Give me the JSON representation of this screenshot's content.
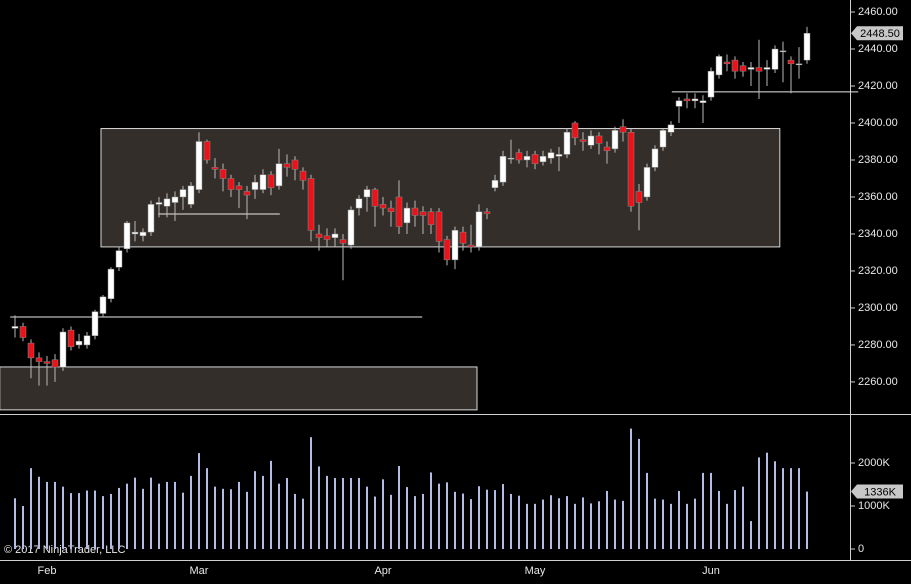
{
  "chart_data": [
    {
      "type": "candlestick",
      "categories": [
        null,
        null,
        null,
        null,
        "Feb",
        null,
        null,
        null,
        null,
        null,
        null,
        null,
        null,
        null,
        null,
        null,
        null,
        null,
        null,
        null,
        null,
        null,
        null,
        "Mar",
        null,
        null,
        null,
        null,
        null,
        null,
        null,
        null,
        null,
        null,
        null,
        null,
        null,
        null,
        null,
        null,
        null,
        null,
        null,
        null,
        null,
        null,
        "Apr",
        null,
        null,
        null,
        null,
        null,
        null,
        null,
        null,
        null,
        null,
        null,
        null,
        null,
        null,
        null,
        null,
        null,
        null,
        "May",
        null,
        null,
        null,
        null,
        null,
        null,
        null,
        null,
        null,
        null,
        null,
        null,
        null,
        null,
        null,
        null,
        null,
        null,
        null,
        null,
        null,
        "Jun",
        null,
        null,
        null,
        null,
        null,
        null,
        null,
        null,
        null,
        null,
        null,
        null
      ],
      "open": [
        2289,
        2290,
        2281,
        2273,
        2271,
        2272,
        2268,
        2288,
        2280,
        2280,
        2285,
        2297,
        2305,
        2322,
        2332,
        2340,
        2339,
        2341,
        2356,
        2355,
        2357,
        2360,
        2356,
        2364,
        2390,
        2376,
        2375,
        2370,
        2366,
        2363,
        2364,
        2364,
        2372,
        2366,
        2378,
        2380,
        2374,
        2370,
        2340,
        2339,
        2338,
        2337,
        2334,
        2354,
        2360,
        2364,
        2356,
        2354,
        2360,
        2346,
        2354,
        2352,
        2352,
        2352,
        2337,
        2326,
        2341,
        2334,
        2333,
        2352,
        2365,
        2368,
        2381,
        2384,
        2380,
        2383,
        2379,
        2381,
        2382,
        2383,
        2400,
        2391,
        2388,
        2393,
        2387,
        2386,
        2398,
        2395,
        2363,
        2360,
        2376,
        2387,
        2395,
        2409,
        2413,
        2412,
        2411,
        2414,
        2426,
        2433,
        2434,
        2431,
        2429,
        2430,
        2429,
        2429,
        2439,
        2434,
        2432,
        2434
      ],
      "high": [
        2296,
        2292,
        2283,
        2276,
        2274,
        2275,
        2289,
        2290,
        2286,
        2287,
        2299,
        2307,
        2322,
        2333,
        2347,
        2347,
        2343,
        2358,
        2360,
        2362,
        2363,
        2366,
        2368,
        2395,
        2391,
        2381,
        2378,
        2372,
        2368,
        2366,
        2372,
        2375,
        2374,
        2386,
        2383,
        2382,
        2376,
        2372,
        2345,
        2343,
        2343,
        2340,
        2355,
        2361,
        2366,
        2365,
        2360,
        2358,
        2369,
        2357,
        2358,
        2355,
        2354,
        2354,
        2339,
        2344,
        2344,
        2345,
        2356,
        2354,
        2372,
        2385,
        2391,
        2386,
        2385,
        2385,
        2385,
        2386,
        2387,
        2397,
        2401,
        2395,
        2396,
        2395,
        2390,
        2398,
        2402,
        2397,
        2367,
        2378,
        2388,
        2397,
        2401,
        2414,
        2416,
        2416,
        2415,
        2430,
        2437,
        2437,
        2436,
        2433,
        2433,
        2445,
        2434,
        2442,
        2444,
        2436,
        2441,
        2452
      ],
      "low": [
        2284,
        2282,
        2262,
        2258,
        2258,
        2260,
        2266,
        2277,
        2278,
        2278,
        2283,
        2295,
        2303,
        2320,
        2330,
        2336,
        2336,
        2339,
        2349,
        2349,
        2347,
        2353,
        2354,
        2362,
        2378,
        2370,
        2363,
        2360,
        2354,
        2348,
        2359,
        2362,
        2361,
        2364,
        2371,
        2369,
        2364,
        2336,
        2331,
        2333,
        2333,
        2315,
        2332,
        2350,
        2352,
        2344,
        2350,
        2344,
        2340,
        2340,
        2344,
        2340,
        2340,
        2330,
        2323,
        2321,
        2331,
        2330,
        2331,
        2348,
        2363,
        2366,
        2378,
        2378,
        2376,
        2375,
        2377,
        2378,
        2374,
        2381,
        2388,
        2385,
        2386,
        2383,
        2378,
        2384,
        2390,
        2352,
        2342,
        2358,
        2374,
        2385,
        2393,
        2400,
        2408,
        2408,
        2400,
        2412,
        2424,
        2428,
        2424,
        2425,
        2420,
        2413,
        2420,
        2427,
        2422,
        2416,
        2424,
        2432
      ],
      "close": [
        2290,
        2284,
        2273,
        2271,
        2270,
        2268,
        2287,
        2279,
        2282,
        2285,
        2298,
        2306,
        2321,
        2331,
        2346,
        2341,
        2341,
        2356,
        2357,
        2359,
        2360,
        2364,
        2366,
        2390,
        2380,
        2375,
        2370,
        2364,
        2364,
        2361,
        2368,
        2372,
        2365,
        2378,
        2376,
        2375,
        2369,
        2342,
        2338,
        2337,
        2340,
        2335,
        2353,
        2359,
        2364,
        2355,
        2354,
        2352,
        2344,
        2354,
        2350,
        2350,
        2345,
        2336,
        2326,
        2342,
        2335,
        2333,
        2352,
        2351,
        2369,
        2382,
        2381,
        2380,
        2382,
        2378,
        2382,
        2384,
        2383,
        2395,
        2392,
        2390,
        2393,
        2389,
        2385,
        2396,
        2395,
        2355,
        2357,
        2376,
        2386,
        2396,
        2399,
        2412,
        2412,
        2413,
        2412,
        2428,
        2436,
        2432,
        2428,
        2428,
        2430,
        2428,
        2430,
        2440,
        2439,
        2432,
        2432,
        2448.5
      ],
      "last_label": "2448.50",
      "up_color": "#ffffff",
      "down_color": "#e8141c",
      "ylim": [
        2243.2,
        2466.5
      ],
      "yticks": [
        {
          "value": 2260,
          "label": "2260.00"
        },
        {
          "value": 2280,
          "label": "2280.00"
        },
        {
          "value": 2300,
          "label": "2300.00"
        },
        {
          "value": 2320,
          "label": "2320.00"
        },
        {
          "value": 2340,
          "label": "2340.00"
        },
        {
          "value": 2360,
          "label": "2360.00"
        },
        {
          "value": 2380,
          "label": "2380.00"
        },
        {
          "value": 2400,
          "label": "2400.00"
        },
        {
          "value": 2420,
          "label": "2420.00"
        },
        {
          "value": 2440,
          "label": "2440.00"
        },
        {
          "value": 2460,
          "label": "2460.00"
        }
      ],
      "zones": [
        {
          "x": [
            10.75,
            95.6
          ],
          "y": [
            2333,
            2397
          ]
        },
        {
          "x": [
            -1.9,
            57.75
          ],
          "y": [
            2244.9,
            2268.1
          ]
        }
      ],
      "lines": [
        {
          "x": [
            -0.6,
            50.9
          ],
          "y": 2295.1
        },
        {
          "x": [
            17.9,
            33.1
          ],
          "y": 2350.8
        },
        {
          "x": [
            82.1,
            105.4
          ],
          "y": 2416.8
        }
      ]
    },
    {
      "type": "bar",
      "values": [
        1180,
        1000,
        1880,
        1680,
        1560,
        1560,
        1450,
        1300,
        1300,
        1360,
        1360,
        1230,
        1280,
        1420,
        1520,
        1660,
        1400,
        1660,
        1520,
        1560,
        1560,
        1310,
        1700,
        2230,
        1880,
        1450,
        1400,
        1390,
        1560,
        1330,
        1810,
        1700,
        2050,
        1520,
        1650,
        1280,
        1170,
        2600,
        1920,
        1700,
        1650,
        1650,
        1650,
        1650,
        1450,
        1220,
        1620,
        1260,
        1930,
        1440,
        1230,
        1280,
        1780,
        1520,
        1550,
        1330,
        1290,
        1160,
        1460,
        1380,
        1370,
        1510,
        1280,
        1240,
        1050,
        1050,
        1150,
        1250,
        1180,
        1230,
        1050,
        1200,
        1060,
        1110,
        1350,
        1150,
        1120,
        2800,
        2560,
        1770,
        1170,
        1150,
        1050,
        1350,
        1050,
        1170,
        1770,
        1770,
        1350,
        1050,
        1370,
        1450,
        650,
        2130,
        2240,
        2040,
        1880,
        1880,
        1880,
        1336
      ],
      "last_label": "1336K",
      "color": "#b4bce6",
      "ylim": [
        -209,
        3116
      ],
      "yticks": [
        0,
        {
          "value": 1000,
          "label": "1000K"
        },
        {
          "value": 2000,
          "label": "2000K"
        }
      ],
      "footnote": "© 2017 NinjaTrader, LLC"
    }
  ]
}
